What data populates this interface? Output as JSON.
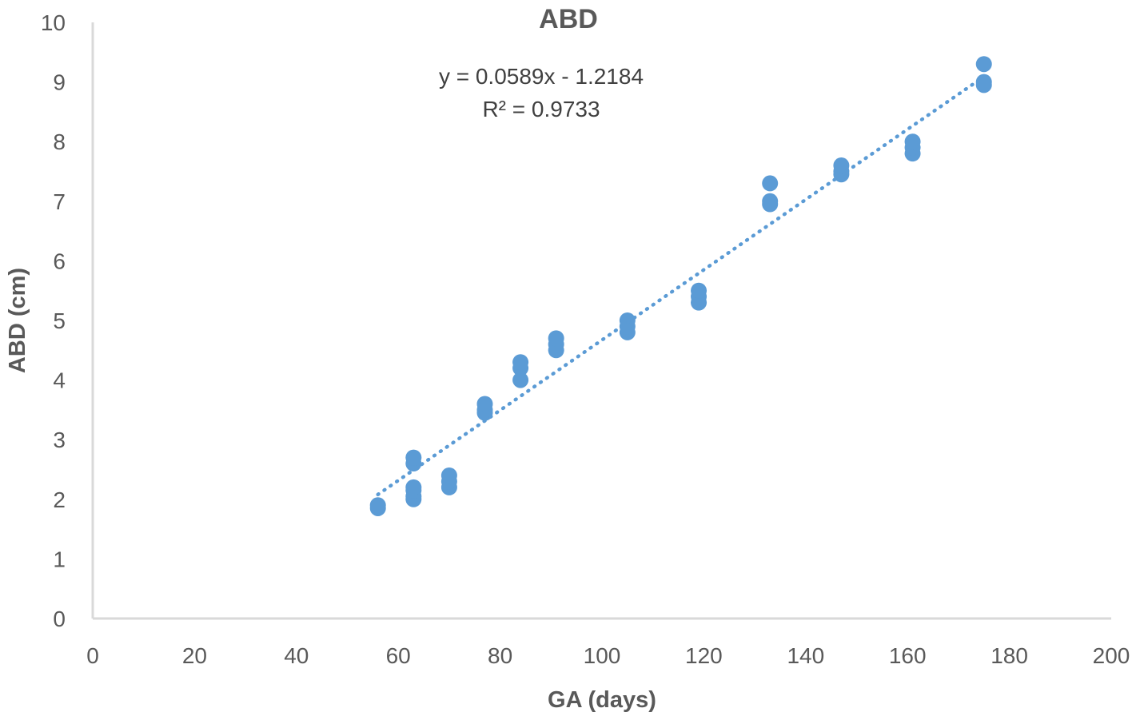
{
  "chart_data": {
    "type": "scatter",
    "title": "ABD",
    "xlabel": "GA (days)",
    "ylabel": "ABD (cm)",
    "xlim": [
      0,
      200
    ],
    "ylim": [
      0,
      10
    ],
    "x_ticks": [
      "0",
      "20",
      "40",
      "60",
      "80",
      "100",
      "120",
      "140",
      "160",
      "180",
      "200"
    ],
    "y_ticks": [
      "0",
      "1",
      "2",
      "3",
      "4",
      "5",
      "6",
      "7",
      "8",
      "9",
      "10"
    ],
    "grid": false,
    "legend": "none",
    "colors": {
      "points": "#5b9bd5",
      "trendline": "#5b9bd5",
      "axis": "#d9d9d9",
      "text": "#595959"
    },
    "series": [
      {
        "points": [
          [
            56,
            1.85
          ],
          [
            56,
            1.9
          ],
          [
            63,
            2.0
          ],
          [
            63,
            2.05
          ],
          [
            63,
            2.15
          ],
          [
            63,
            2.2
          ],
          [
            63,
            2.6
          ],
          [
            63,
            2.7
          ],
          [
            70,
            2.2
          ],
          [
            70,
            2.3
          ],
          [
            70,
            2.4
          ],
          [
            77,
            3.45
          ],
          [
            77,
            3.5
          ],
          [
            77,
            3.6
          ],
          [
            84,
            4.0
          ],
          [
            84,
            4.2
          ],
          [
            84,
            4.3
          ],
          [
            91,
            4.5
          ],
          [
            91,
            4.6
          ],
          [
            91,
            4.7
          ],
          [
            105,
            4.8
          ],
          [
            105,
            4.9
          ],
          [
            105,
            5.0
          ],
          [
            119,
            5.3
          ],
          [
            119,
            5.4
          ],
          [
            119,
            5.5
          ],
          [
            133,
            6.95
          ],
          [
            133,
            7.0
          ],
          [
            133,
            7.3
          ],
          [
            147,
            7.45
          ],
          [
            147,
            7.5
          ],
          [
            147,
            7.6
          ],
          [
            161,
            7.8
          ],
          [
            161,
            7.9
          ],
          [
            161,
            8.0
          ],
          [
            175,
            8.95
          ],
          [
            175,
            9.0
          ],
          [
            175,
            9.3
          ]
        ]
      }
    ],
    "trendline": {
      "type": "linear",
      "slope": 0.0589,
      "intercept": -1.2184,
      "x_range": [
        56,
        175
      ],
      "equation_label": "y = 0.0589x - 1.2184",
      "r2_label": "R² = 0.9733"
    }
  }
}
